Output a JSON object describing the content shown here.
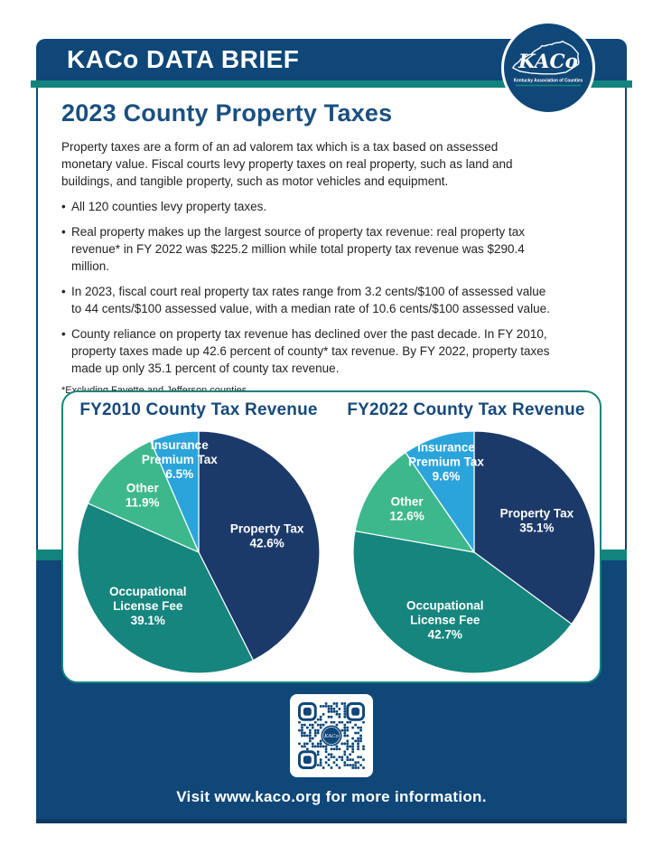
{
  "header": {
    "title": "KACo DATA BRIEF"
  },
  "logo": {
    "acronym": "KACo",
    "org_name": "Kentucky Association of Counties"
  },
  "article": {
    "title": "2023 County Property Taxes",
    "intro": "Property taxes are a form of an ad valorem tax which is a tax based on assessed monetary value. Fiscal courts levy property taxes on real property, such as land and buildings, and tangible property, such as motor vehicles and equipment.",
    "bullets": [
      "All 120 counties levy property taxes.",
      "Real property makes up the largest source of property tax revenue: real property tax revenue* in FY 2022 was $225.2 million while total property tax revenue was $290.4 million.",
      "In 2023, fiscal court real property tax rates range from 3.2 cents/$100 of assessed value to 44 cents/$100 assessed value, with a median rate of 10.6 cents/$100 assessed value.",
      "County reliance on property tax revenue has declined over the past decade. In FY 2010, property taxes made up 42.6 percent of county* tax revenue. By FY 2022, property taxes made up only 35.1 percent of county tax revenue."
    ],
    "footnote": "*Excluding Fayette and Jefferson counties."
  },
  "qr": {
    "center_label": "KACo"
  },
  "footer": {
    "text": "Visit www.kaco.org for more information."
  },
  "colors": {
    "navy": "#0f4778",
    "navy_dark": "#0c3a63",
    "teal": "#12847d",
    "heading_blue": "#1a5080",
    "chart_title_blue": "#16497c",
    "slice_navy": "#1c3a69",
    "slice_teal": "#15857d",
    "slice_green": "#3db88c",
    "slice_blue": "#2ba4db",
    "label_white": "#ffffff"
  },
  "chart_data": [
    {
      "type": "pie",
      "title": "FY2010 County Tax Revenue",
      "direction": "clockwise",
      "start_angle_deg": 0,
      "label_color": "#ffffff",
      "slices": [
        {
          "label": "Property Tax",
          "label_lines": [
            "Property Tax"
          ],
          "value": 42.6,
          "display": "42.6%",
          "color": "#1c3a69"
        },
        {
          "label": "Occupational License Fee",
          "label_lines": [
            "Occupational",
            "License Fee"
          ],
          "value": 39.1,
          "display": "39.1%",
          "color": "#15857d"
        },
        {
          "label": "Other",
          "label_lines": [
            "Other"
          ],
          "value": 11.9,
          "display": "11.9%",
          "color": "#3db88c"
        },
        {
          "label": "Insurance Premium Tax",
          "label_lines": [
            "Insurance",
            "Premium Tax"
          ],
          "value": 6.5,
          "display": "6.5%",
          "color": "#2ba4db"
        }
      ]
    },
    {
      "type": "pie",
      "title": "FY2022 County Tax Revenue",
      "direction": "clockwise",
      "start_angle_deg": 0,
      "label_color": "#ffffff",
      "slices": [
        {
          "label": "Property Tax",
          "label_lines": [
            "Property Tax"
          ],
          "value": 35.1,
          "display": "35.1%",
          "color": "#1c3a69"
        },
        {
          "label": "Occupational License Fee",
          "label_lines": [
            "Occupational",
            "License Fee"
          ],
          "value": 42.7,
          "display": "42.7%",
          "color": "#15857d"
        },
        {
          "label": "Other",
          "label_lines": [
            "Other"
          ],
          "value": 12.6,
          "display": "12.6%",
          "color": "#3db88c"
        },
        {
          "label": "Insurance Premium Tax",
          "label_lines": [
            "Insurance",
            "Premium Tax"
          ],
          "value": 9.6,
          "display": "9.6%",
          "color": "#2ba4db"
        }
      ]
    }
  ]
}
